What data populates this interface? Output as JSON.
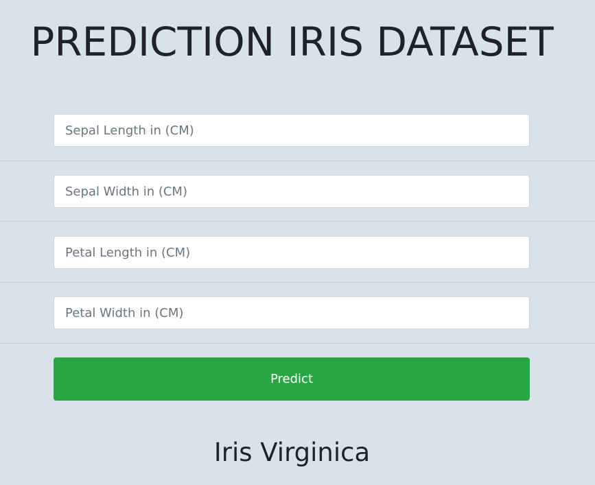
{
  "header": {
    "title": "PREDICTION IRIS DATASET"
  },
  "form": {
    "fields": [
      {
        "placeholder": "Sepal Length in (CM)",
        "value": ""
      },
      {
        "placeholder": "Sepal Width in (CM)",
        "value": ""
      },
      {
        "placeholder": "Petal Length in (CM)",
        "value": ""
      },
      {
        "placeholder": "Petal Width in (CM)",
        "value": ""
      }
    ],
    "submit_label": "Predict"
  },
  "result": {
    "text": "Iris Virginica"
  },
  "colors": {
    "background": "#d8e2e9",
    "button": "#28a745",
    "button_text": "#ffffff",
    "heading": "#1f2327"
  }
}
